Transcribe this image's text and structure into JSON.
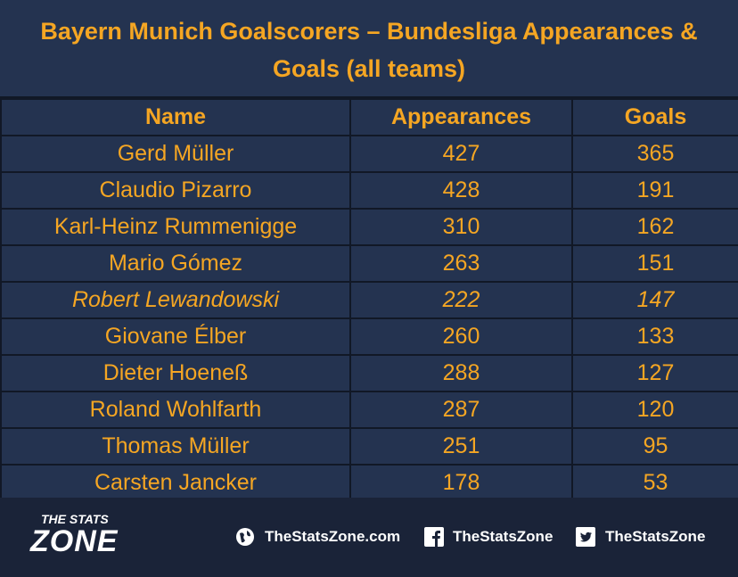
{
  "header": {
    "title": "Bayern Munich Goalscorers – Bundesliga Appearances & Goals (all teams)"
  },
  "table": {
    "columns": [
      "Name",
      "Appearances",
      "Goals"
    ],
    "rows": [
      [
        "Gerd Müller",
        427,
        365
      ],
      [
        "Claudio Pizarro",
        428,
        191
      ],
      [
        "Karl-Heinz Rummenigge",
        310,
        162
      ],
      [
        "Mario Gómez",
        263,
        151
      ],
      [
        "Robert Lewandowski",
        222,
        147
      ],
      [
        "Giovane Élber",
        260,
        133
      ],
      [
        "Dieter Hoeneß",
        288,
        127
      ],
      [
        "Roland Wohlfarth",
        287,
        120
      ],
      [
        "Thomas Müller",
        251,
        95
      ],
      [
        "Carsten Jancker",
        178,
        53
      ]
    ]
  },
  "footer": {
    "logo_top": "THE STATS",
    "logo_bottom": "ZONE",
    "website": "TheStatsZone.com",
    "facebook": "TheStatsZone",
    "twitter": "TheStatsZone"
  }
}
